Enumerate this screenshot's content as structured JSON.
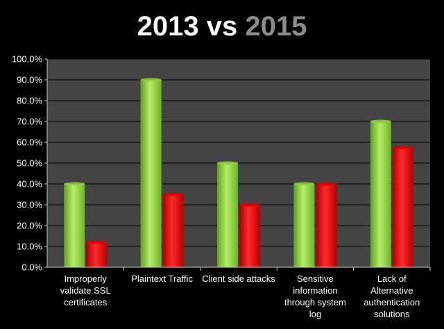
{
  "chart_data": {
    "type": "bar",
    "title": "2013 vs 2015",
    "title_parts": [
      "2013",
      "vs",
      "2015"
    ],
    "categories": [
      "Improperly validate SSL certificates",
      "Plaintext Traffic",
      "Client side attacks",
      "Sensitive information through system log",
      "Lack of Alternative authentication solutions"
    ],
    "category_lines": [
      [
        "Improperly",
        "validate SSL",
        "certificates"
      ],
      [
        "Plaintext Traffic"
      ],
      [
        "Client side attacks"
      ],
      [
        "Sensitive",
        "information",
        "through system",
        "log"
      ],
      [
        "Lack of",
        "Alternative",
        "authentication",
        "solutions"
      ]
    ],
    "series": [
      {
        "name": "2013",
        "values": [
          40,
          90,
          50,
          40,
          70
        ],
        "color": "#8fd43a"
      },
      {
        "name": "2015",
        "values": [
          12,
          35,
          30,
          40,
          57.5
        ],
        "color": "#e00000"
      }
    ],
    "ylim": [
      0,
      100
    ],
    "ytick_step": 10,
    "ytick_labels": [
      "0.0%",
      "10.0%",
      "20.0%",
      "30.0%",
      "40.0%",
      "50.0%",
      "60.0%",
      "70.0%",
      "80.0%",
      "90.0%",
      "100.0%"
    ],
    "xlabel": "",
    "ylabel": "",
    "legend": "none",
    "grid": true
  },
  "colors": {
    "background": "#000000",
    "plot_area": "#444444",
    "gridline": "#000000",
    "title_text": "#ffffff",
    "title_highlight": "#8c8c8c"
  }
}
